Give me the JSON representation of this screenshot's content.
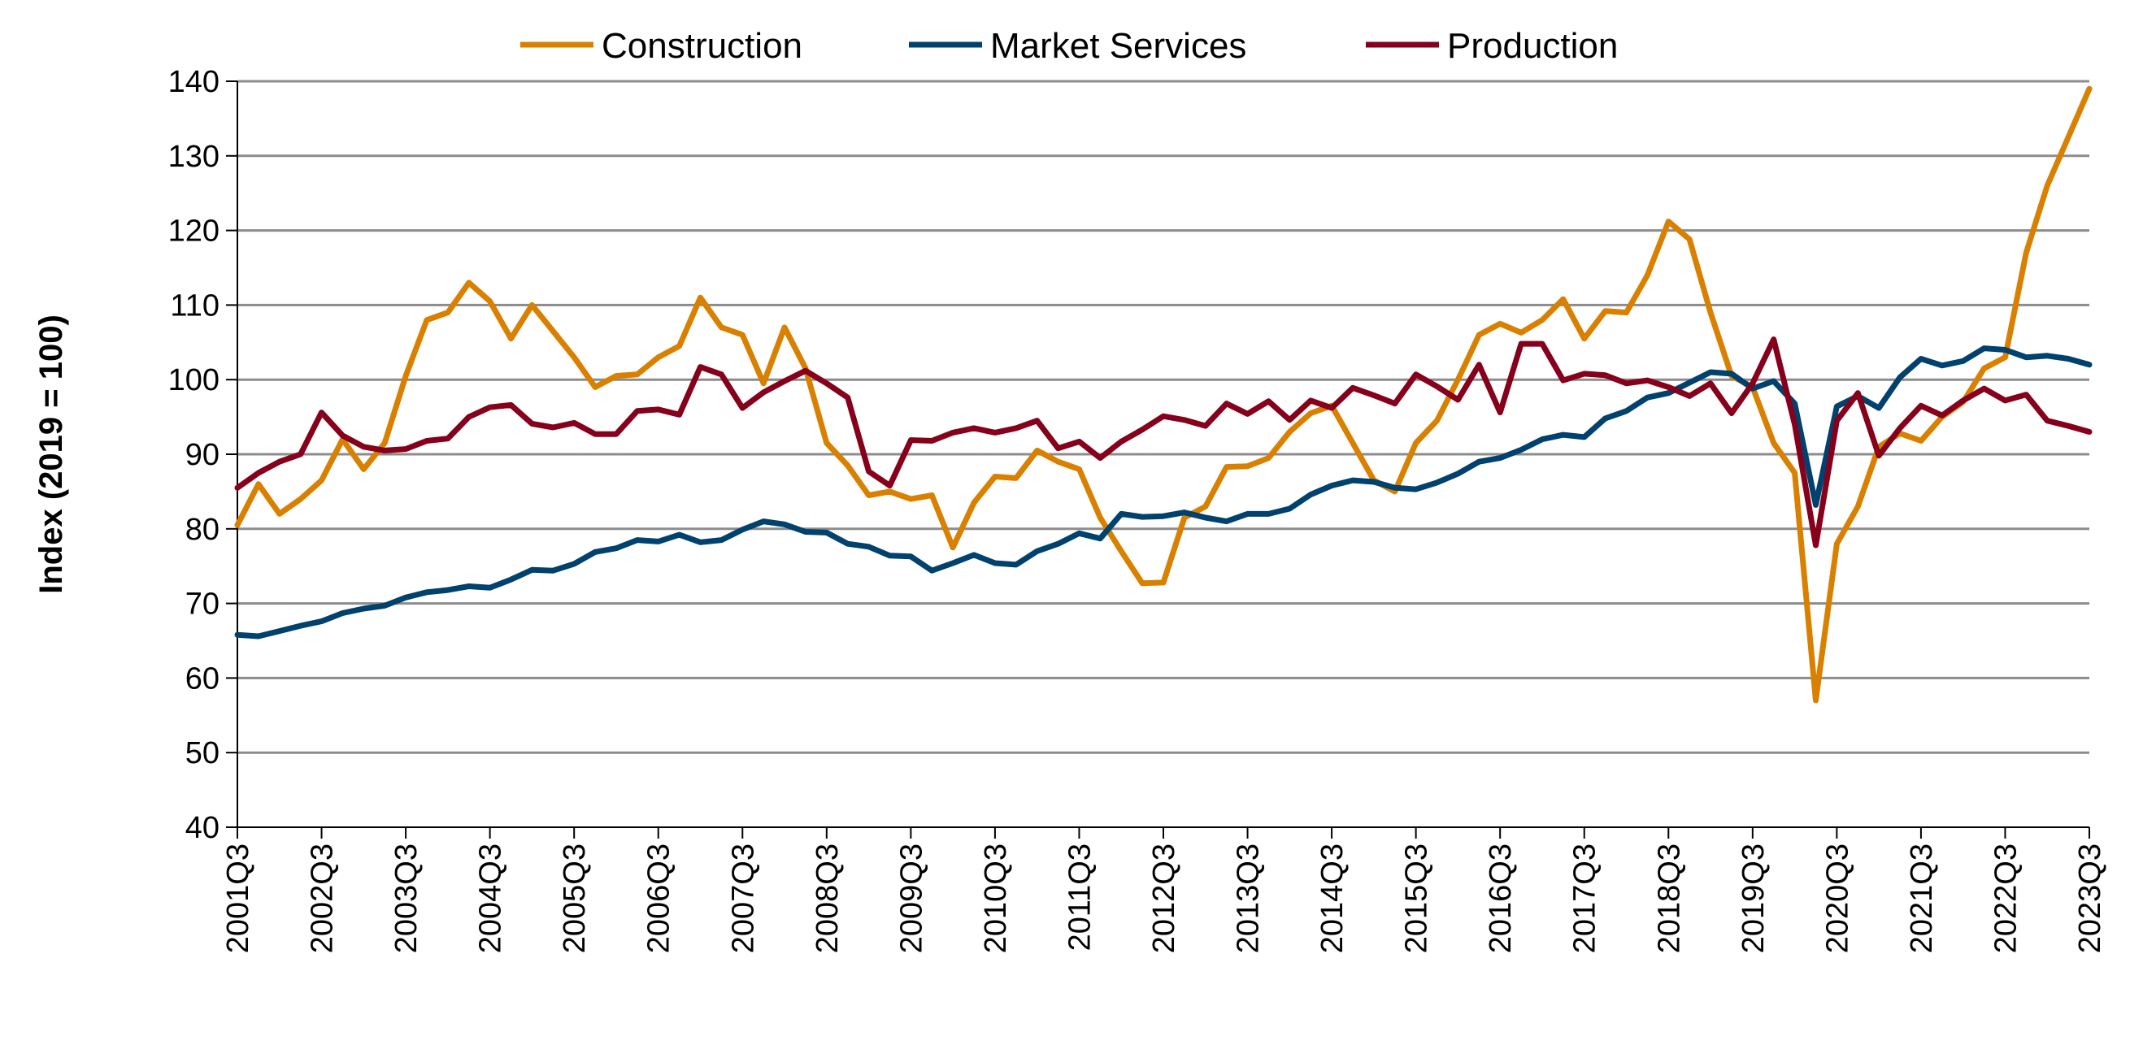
{
  "chart_data": {
    "type": "line",
    "title": "",
    "xlabel": "",
    "ylabel": "Index (2019 = 100)",
    "ylim": [
      40,
      140
    ],
    "yticks": [
      40,
      50,
      60,
      70,
      80,
      90,
      100,
      110,
      120,
      130,
      140
    ],
    "grid": true,
    "legend_position": "top",
    "x_start": "2001Q3",
    "x_end": "2023Q3",
    "xtick_labels": [
      "2001Q3",
      "2002Q3",
      "2003Q3",
      "2004Q3",
      "2005Q3",
      "2006Q3",
      "2007Q3",
      "2008Q3",
      "2009Q3",
      "2010Q3",
      "2011Q3",
      "2012Q3",
      "2013Q3",
      "2014Q3",
      "2015Q3",
      "2016Q3",
      "2017Q3",
      "2018Q3",
      "2019Q3",
      "2020Q3",
      "2021Q3",
      "2022Q3",
      "2023Q3"
    ],
    "series": [
      {
        "name": "Construction",
        "color": "#D98000",
        "values": [
          80.5,
          86,
          82,
          84,
          86.5,
          92,
          88,
          91.5,
          100.5,
          108,
          109,
          113,
          110.5,
          105.5,
          110,
          106.5,
          103,
          99,
          100.5,
          100.7,
          103,
          104.5,
          111,
          107,
          106,
          99.5,
          107,
          101.5,
          91.5,
          88.5,
          84.5,
          85,
          84,
          84.5,
          77.5,
          83.5,
          87,
          86.8,
          90.5,
          89,
          88,
          81.5,
          77,
          72.7,
          72.8,
          81.5,
          83,
          88.3,
          88.4,
          89.5,
          93,
          95.5,
          96.5,
          91.5,
          86.5,
          85,
          91.5,
          94.5,
          100,
          106,
          107.5,
          106.3,
          108,
          110.8,
          105.5,
          109.2,
          109,
          114,
          121.2,
          118.8,
          109,
          100.5,
          99,
          91.5,
          87.5,
          57,
          78,
          83,
          91,
          92.8,
          91.8,
          95,
          97,
          101.5,
          103,
          117,
          126,
          132.5,
          139
        ]
      },
      {
        "name": "Market Services",
        "color": "#00416E",
        "values": [
          65.8,
          65.6,
          66.3,
          67,
          67.6,
          68.7,
          69.3,
          69.7,
          70.8,
          71.5,
          71.8,
          72.3,
          72.1,
          73.2,
          74.5,
          74.4,
          75.3,
          76.9,
          77.4,
          78.5,
          78.3,
          79.2,
          78.2,
          78.5,
          79.9,
          81,
          80.6,
          79.6,
          79.5,
          78,
          77.6,
          76.4,
          76.3,
          74.4,
          75.4,
          76.5,
          75.4,
          75.2,
          77,
          78,
          79.4,
          78.7,
          82,
          81.6,
          81.7,
          82.2,
          81.5,
          81,
          82,
          82,
          82.7,
          84.6,
          85.8,
          86.5,
          86.3,
          85.5,
          85.3,
          86.2,
          87.4,
          89,
          89.5,
          90.6,
          92,
          92.6,
          92.3,
          94.8,
          95.8,
          97.6,
          98.2,
          99.6,
          101,
          100.8,
          98.8,
          99.8,
          96.8,
          83.2,
          96.4,
          97.8,
          96.2,
          100.3,
          102.8,
          101.9,
          102.5,
          104.2,
          104,
          103,
          103.2,
          102.8,
          102
        ]
      },
      {
        "name": "Production",
        "color": "#86001C",
        "values": [
          85.5,
          87.5,
          89,
          90,
          95.6,
          92.5,
          91,
          90.5,
          90.7,
          91.8,
          92.1,
          95,
          96.3,
          96.6,
          94.1,
          93.6,
          94.2,
          92.7,
          92.7,
          95.8,
          96,
          95.3,
          101.7,
          100.7,
          96.2,
          98.3,
          99.8,
          101.2,
          99.5,
          97.6,
          87.7,
          85.8,
          91.9,
          91.8,
          92.9,
          93.5,
          92.9,
          93.5,
          94.5,
          90.8,
          91.7,
          89.5,
          91.7,
          93.3,
          95.1,
          94.6,
          93.8,
          96.8,
          95.4,
          97.1,
          94.6,
          97.2,
          96.2,
          98.9,
          97.9,
          96.8,
          100.7,
          99.1,
          97.3,
          102,
          95.6,
          104.8,
          104.8,
          99.9,
          100.8,
          100.6,
          99.5,
          99.9,
          99,
          97.8,
          99.5,
          95.5,
          99.5,
          105.4,
          94,
          77.8,
          94.5,
          98.2,
          89.8,
          93.5,
          96.5,
          95.2,
          97.2,
          98.8,
          97.2,
          98,
          94.5,
          93.8,
          93
        ]
      }
    ]
  }
}
